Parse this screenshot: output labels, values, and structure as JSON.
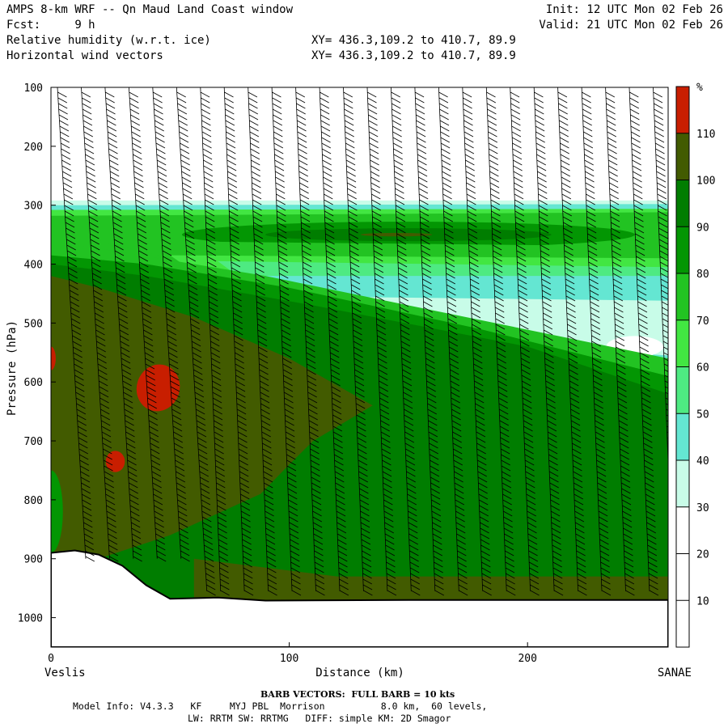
{
  "header": {
    "title": "AMPS 8-km WRF -- Qn Maud Land Coast window",
    "fcst_label": "Fcst:",
    "fcst_value": "9 h",
    "init": "Init: 12 UTC Mon 02 Feb 26",
    "valid": "Valid: 21 UTC Mon 02 Feb 26",
    "field1": "Relative humidity (w.r.t. ice)",
    "field2": "Horizontal wind vectors",
    "xy1": "XY= 436.3,109.2 to 410.7, 89.9",
    "xy2": "XY= 436.3,109.2 to 410.7, 89.9"
  },
  "chart_data": {
    "type": "heatmap",
    "subtype": "vertical cross-section filled contours with wind barbs",
    "title": "Relative humidity (w.r.t. ice)",
    "xlabel": "Distance (km)",
    "ylabel": "Pressure (hPa)",
    "xlim": [
      0,
      259
    ],
    "ylim": [
      1050,
      100
    ],
    "x_ticks": [
      0,
      100,
      200
    ],
    "y_ticks": [
      100,
      200,
      300,
      400,
      500,
      600,
      700,
      800,
      900,
      1000
    ],
    "x_start_label": "Veslis",
    "x_end_label": "SANAE",
    "colorbar": {
      "unit": "%",
      "levels": [
        10,
        20,
        30,
        40,
        50,
        60,
        70,
        80,
        90,
        100,
        110
      ],
      "colors": [
        "#ffffff",
        "#ffffff",
        "#ffffff",
        "#c8fce8",
        "#64e6d2",
        "#4eea82",
        "#42e642",
        "#22c322",
        "#039603",
        "#007d00",
        "#425b00",
        "#c81e00"
      ]
    },
    "terrain_surface": [
      [
        0,
        890
      ],
      [
        10,
        886
      ],
      [
        20,
        893
      ],
      [
        30,
        912
      ],
      [
        40,
        945
      ],
      [
        50,
        968
      ],
      [
        70,
        966
      ],
      [
        90,
        971
      ],
      [
        150,
        970
      ],
      [
        259,
        970
      ]
    ],
    "rh_regions": [
      {
        "name": "upper-dry",
        "rh": "<30",
        "p_range": [
          100,
          295
        ]
      },
      {
        "name": "moist-band",
        "rh": "40-100",
        "p_range": [
          295,
          420
        ],
        "max_rh": 100,
        "max_at": {
          "x_km": 145,
          "p_hPa": 350
        }
      },
      {
        "name": "mid-dry-slot",
        "rh": "30-50",
        "x_range": [
          110,
          259
        ],
        "p_range": [
          460,
          550
        ]
      },
      {
        "name": "lower-saturated",
        "rh": "100-110",
        "x_range": [
          0,
          140
        ],
        "p_range": [
          420,
          950
        ]
      },
      {
        "name": "supersaturated-cell-1",
        "rh": ">110",
        "center": {
          "x_km": 45,
          "p_hPa": 610
        }
      },
      {
        "name": "supersaturated-cell-2",
        "rh": ">110",
        "center": {
          "x_km": 27,
          "p_hPa": 735
        }
      },
      {
        "name": "supersaturated-cell-edge",
        "rh": ">110",
        "center": {
          "x_km": 0,
          "p_hPa": 560
        }
      },
      {
        "name": "boundary-layer-dry-pocket",
        "rh": "90-100",
        "x_range": [
          50,
          259
        ],
        "p_range": [
          780,
          920
        ]
      }
    ],
    "wind_barbs": {
      "x_km": [
        0,
        10,
        20,
        30,
        40,
        50,
        60,
        70,
        80,
        90,
        100,
        110,
        120,
        130,
        140,
        150,
        160,
        170,
        180,
        190,
        200,
        210,
        220,
        230,
        240,
        250
      ],
      "p_range_hPa": [
        100,
        960
      ],
      "full_barb_kts": 10
    }
  },
  "footer": {
    "barb_note": "BARB VECTORS:  FULL BARB = 10 kts",
    "model_info": "Model Info: V4.3.3   KF     MYJ PBL  Morrison          8.0 km,  60 levels,",
    "model_info2": "LW: RRTM SW: RRTMG   DIFF: simple KM: 2D Smagor"
  }
}
